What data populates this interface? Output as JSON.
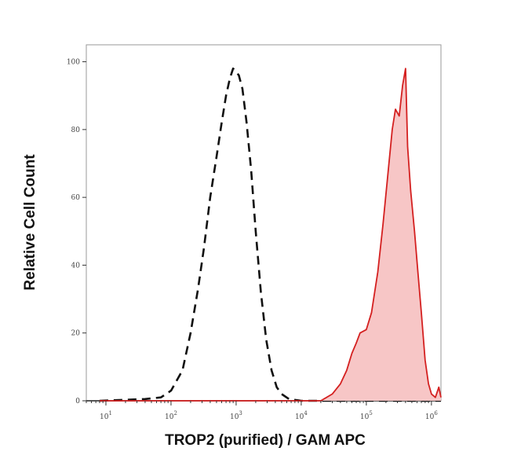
{
  "chart_data": {
    "type": "area",
    "title": "",
    "xlabel": "TROP2 (purified) / GAM APC",
    "ylabel": "Relative Cell Count",
    "x_scale": "log",
    "xlim": [
      5,
      1400000
    ],
    "ylim": [
      0,
      105
    ],
    "x_ticks": [
      {
        "value": 10,
        "base": "10",
        "exp": "1"
      },
      {
        "value": 100,
        "base": "10",
        "exp": "2"
      },
      {
        "value": 1000,
        "base": "10",
        "exp": "3"
      },
      {
        "value": 10000,
        "base": "10",
        "exp": "4"
      },
      {
        "value": 100000,
        "base": "10",
        "exp": "5"
      },
      {
        "value": 1000000,
        "base": "10",
        "exp": "6"
      }
    ],
    "y_ticks": [
      0,
      20,
      40,
      60,
      80,
      100
    ],
    "grid": false,
    "legend": "none",
    "series": [
      {
        "style": "dashed",
        "color": "#111111",
        "fill": "none",
        "points": [
          [
            8,
            0
          ],
          [
            40,
            0.5
          ],
          [
            70,
            1
          ],
          [
            100,
            3
          ],
          [
            150,
            9
          ],
          [
            200,
            20
          ],
          [
            260,
            33
          ],
          [
            320,
            45
          ],
          [
            400,
            60
          ],
          [
            500,
            72
          ],
          [
            600,
            82
          ],
          [
            700,
            90
          ],
          [
            800,
            95
          ],
          [
            900,
            98
          ],
          [
            1000,
            97
          ],
          [
            1100,
            96
          ],
          [
            1250,
            92
          ],
          [
            1450,
            82
          ],
          [
            1700,
            68
          ],
          [
            2000,
            50
          ],
          [
            2400,
            32
          ],
          [
            2900,
            18
          ],
          [
            3500,
            9
          ],
          [
            4200,
            4
          ],
          [
            5000,
            2
          ],
          [
            6500,
            0.5
          ],
          [
            10000,
            0
          ],
          [
            1400000,
            0
          ]
        ]
      },
      {
        "style": "solid",
        "color": "#d42020",
        "fill": "#f7c6c6",
        "points": [
          [
            8,
            0
          ],
          [
            20000,
            0
          ],
          [
            30000,
            2
          ],
          [
            40000,
            5
          ],
          [
            50000,
            9
          ],
          [
            60000,
            14
          ],
          [
            70000,
            17
          ],
          [
            80000,
            20
          ],
          [
            100000,
            21
          ],
          [
            120000,
            26
          ],
          [
            150000,
            38
          ],
          [
            180000,
            52
          ],
          [
            210000,
            65
          ],
          [
            250000,
            80
          ],
          [
            280000,
            86
          ],
          [
            320000,
            84
          ],
          [
            360000,
            93
          ],
          [
            400000,
            98
          ],
          [
            430000,
            75
          ],
          [
            480000,
            62
          ],
          [
            550000,
            50
          ],
          [
            620000,
            38
          ],
          [
            700000,
            26
          ],
          [
            800000,
            12
          ],
          [
            900000,
            5
          ],
          [
            1000000,
            2
          ],
          [
            1150000,
            1
          ],
          [
            1300000,
            4
          ],
          [
            1400000,
            1
          ]
        ]
      }
    ]
  }
}
